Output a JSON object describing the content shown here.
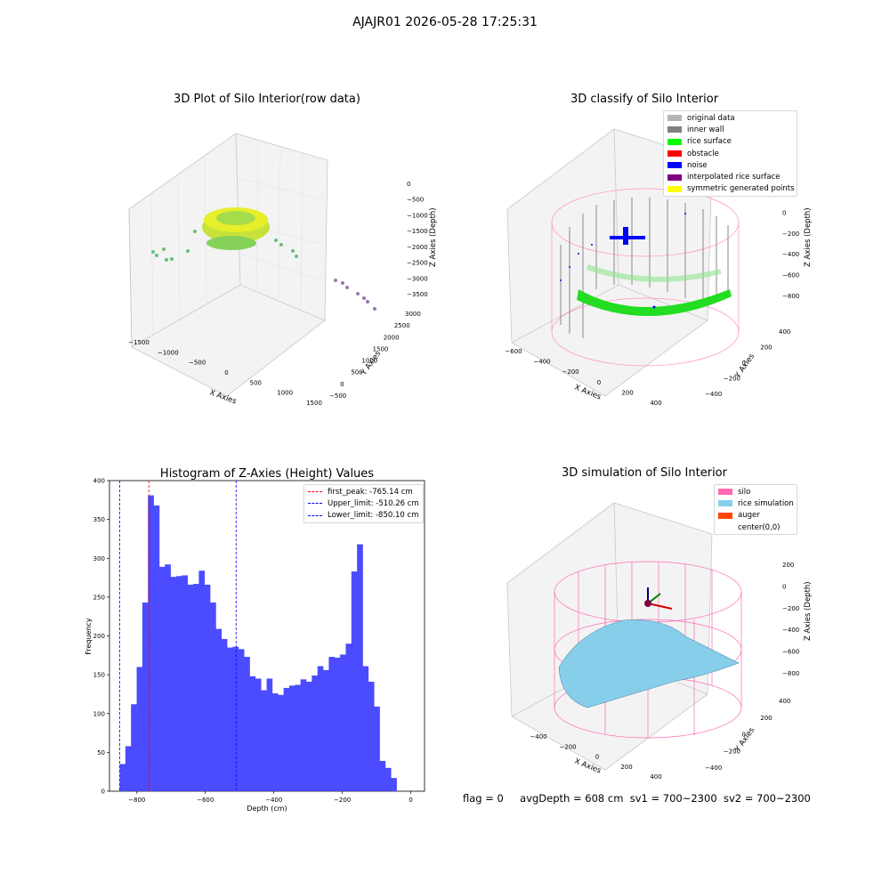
{
  "suptitle": "AJAJR01 2026-05-28 17:25:31",
  "panels": {
    "raw": {
      "title": "3D Plot of Silo Interior(row data)",
      "xlabel": "X Axies",
      "ylabel": "Y Axies",
      "zlabel": "Z Axies (Depth)",
      "xticks": [
        "−1500",
        "−1000",
        "−500",
        "0",
        "500",
        "1000",
        "1500"
      ],
      "yticks": [
        "−500",
        "0",
        "500",
        "1000",
        "1500",
        "2000",
        "2500",
        "3000"
      ],
      "zticks": [
        "0",
        "−500",
        "−1000",
        "−1500",
        "−2000",
        "−2500",
        "−3000",
        "−3500"
      ]
    },
    "classify": {
      "title": "3D classify of Silo Interior",
      "xlabel": "X Axies",
      "ylabel": "Y Axies",
      "zlabel": "Z Axies (Depth)",
      "xticks": [
        "−600",
        "−400",
        "−200",
        "0",
        "200",
        "400"
      ],
      "yticks": [
        "−400",
        "−200",
        "0",
        "200",
        "400"
      ],
      "zticks": [
        "200",
        "0",
        "−200",
        "−400",
        "−600",
        "−800"
      ],
      "legend": [
        {
          "label": "original data",
          "color": "#b4b4b4"
        },
        {
          "label": "inner wall",
          "color": "#808080"
        },
        {
          "label": "rice surface",
          "color": "#00ff00"
        },
        {
          "label": "obstacle",
          "color": "#ff0000"
        },
        {
          "label": "noise",
          "color": "#0000ff"
        },
        {
          "label": "interpolated rice surface",
          "color": "#800080"
        },
        {
          "label": "symmetric generated points",
          "color": "#ffff00"
        }
      ]
    },
    "simulation": {
      "title": "3D simulation of Silo Interior",
      "xlabel": "X Axies",
      "ylabel": "Y Axies",
      "zlabel": "Z Axies (Depth)",
      "xticks": [
        "−400",
        "−200",
        "0",
        "200",
        "400"
      ],
      "yticks": [
        "−400",
        "−200",
        "0",
        "200",
        "400"
      ],
      "zticks": [
        "200",
        "0",
        "−200",
        "−400",
        "−600",
        "−800"
      ],
      "legend": [
        {
          "label": "silo",
          "color": "#ff69b4"
        },
        {
          "label": "rice simulation",
          "color": "#87ceeb"
        },
        {
          "label": "auger",
          "color": "#ff4500"
        },
        {
          "label": "center(0,0)",
          "color": ""
        }
      ]
    }
  },
  "chart_data": {
    "type": "bar",
    "title": "Histogram of Z-Axies (Height) Values",
    "xlabel": "Depth (cm)",
    "ylabel": "Frequency",
    "xlim": [
      -880,
      40
    ],
    "ylim": [
      0,
      400
    ],
    "xticks": [
      -800,
      -600,
      -400,
      -200,
      0
    ],
    "yticks": [
      0,
      50,
      100,
      150,
      200,
      250,
      300,
      350,
      400
    ],
    "bin_start": -850.1,
    "bin_width": 16.5,
    "color": "#4b4bff",
    "values": [
      35,
      58,
      112,
      160,
      243,
      381,
      368,
      289,
      292,
      276,
      277,
      278,
      266,
      267,
      284,
      266,
      243,
      209,
      196,
      185,
      186,
      183,
      173,
      148,
      145,
      130,
      145,
      126,
      124,
      133,
      136,
      137,
      144,
      141,
      149,
      161,
      156,
      173,
      172,
      176,
      190,
      283,
      318,
      161,
      141,
      109,
      39,
      30,
      17
    ],
    "vlines": [
      {
        "label": "first_peak: -765.14 cm",
        "x": -765.14,
        "color": "#ff0000"
      },
      {
        "label": "Upper_limit: -510.26 cm",
        "x": -510.26,
        "color": "#0000ff"
      },
      {
        "label": "Lower_limit: -850.10 cm",
        "x": -850.1,
        "color": "#0000ff"
      }
    ],
    "legend_position": "upper right"
  },
  "footer": {
    "flag": "flag = 0",
    "avg_depth": "avgDepth = 608 cm",
    "sv1": "sv1 = 700~2300",
    "sv2": "sv2 = 700~2300"
  }
}
